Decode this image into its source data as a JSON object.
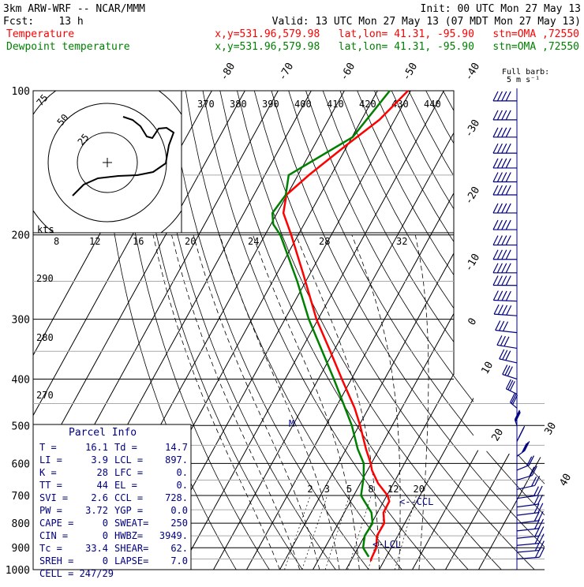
{
  "header": {
    "model": "3km ARW-WRF -- NCAR/MMM",
    "init": "Init: 00 UTC Mon 27 May 13",
    "fcst": "Fcst:    13 h",
    "valid": "Valid: 13 UTC Mon 27 May 13 (07 MDT Mon 27 May 13)",
    "series": [
      {
        "label": "Temperature",
        "info": "x,y=531.96,579.98   lat,lon= 41.31, -95.90   stn=OMA ,72550",
        "color": "#ff0000"
      },
      {
        "label": "Dewpoint temperature",
        "info": "x,y=531.96,579.98   lat,lon= 41.31, -95.90   stn=OMA ,72550",
        "color": "#008000"
      }
    ]
  },
  "colors": {
    "temperature": "#ff0000",
    "dewpoint": "#008000",
    "barbs": "#000080",
    "parcel_title": "#000080",
    "grid": "#000000"
  },
  "chart_data": {
    "type": "line",
    "pressure_levels": [
      "100",
      "200",
      "300",
      "400",
      "500",
      "600",
      "700",
      "800",
      "900",
      "1000"
    ],
    "isotherm_labels": [
      "-80",
      "-70",
      "-60",
      "-50",
      "-40",
      "-30",
      "-20",
      "-10",
      "0",
      "10",
      "20",
      "30",
      "40"
    ],
    "theta_labels": [
      "370",
      "380",
      "390",
      "400",
      "410",
      "420",
      "430",
      "440"
    ],
    "mixing_ratio_labels": [
      "2",
      "3",
      "5",
      "8",
      "12",
      "20"
    ],
    "speed_labels": [
      "8",
      "12",
      "16",
      "20",
      "24",
      "28",
      "32"
    ],
    "theta_side_labels": [
      "290",
      "280",
      "270"
    ],
    "hodograph": {
      "units_label": "kts",
      "ring_labels": [
        "75",
        "50",
        "25"
      ]
    },
    "legend_barb": "Full barb:\n5 m s⁻¹",
    "annotations": {
      "m": "M",
      "ccl": "<--CCL",
      "lcl": "<-LCL"
    },
    "temperature_profile": [
      {
        "p": 100,
        "t": -50.8
      },
      {
        "p": 115,
        "t": -54.6
      },
      {
        "p": 130,
        "t": -60.4
      },
      {
        "p": 150,
        "t": -66.7
      },
      {
        "p": 165,
        "t": -70.2
      },
      {
        "p": 180,
        "t": -68.1
      },
      {
        "p": 200,
        "t": -62.1
      },
      {
        "p": 240,
        "t": -52.3
      },
      {
        "p": 300,
        "t": -40.5
      },
      {
        "p": 350,
        "t": -31.0
      },
      {
        "p": 400,
        "t": -22.9
      },
      {
        "p": 460,
        "t": -14.2
      },
      {
        "p": 500,
        "t": -9.7
      },
      {
        "p": 560,
        "t": -4.0
      },
      {
        "p": 600,
        "t": -0.2
      },
      {
        "p": 620,
        "t": 1.3
      },
      {
        "p": 660,
        "t": 5.3
      },
      {
        "p": 700,
        "t": 10.2
      },
      {
        "p": 720,
        "t": 11.7
      },
      {
        "p": 760,
        "t": 11.8
      },
      {
        "p": 800,
        "t": 13.8
      },
      {
        "p": 850,
        "t": 13.7
      },
      {
        "p": 900,
        "t": 15.5
      },
      {
        "p": 950,
        "t": 15.8
      },
      {
        "p": 960,
        "t": 16.1
      }
    ],
    "dewpoint_profile": [
      {
        "p": 100,
        "t": -56.3
      },
      {
        "p": 125,
        "t": -59.8
      },
      {
        "p": 150,
        "t": -72.8
      },
      {
        "p": 165,
        "t": -70.4
      },
      {
        "p": 180,
        "t": -71.4
      },
      {
        "p": 190,
        "t": -69.3
      },
      {
        "p": 200,
        "t": -65.4
      },
      {
        "p": 250,
        "t": -52.6
      },
      {
        "p": 300,
        "t": -42.8
      },
      {
        "p": 400,
        "t": -25.3
      },
      {
        "p": 500,
        "t": -12.2
      },
      {
        "p": 560,
        "t": -6.5
      },
      {
        "p": 600,
        "t": -2.3
      },
      {
        "p": 640,
        "t": -0.1
      },
      {
        "p": 700,
        "t": 2.2
      },
      {
        "p": 720,
        "t": 4.2
      },
      {
        "p": 760,
        "t": 8.2
      },
      {
        "p": 800,
        "t": 10.3
      },
      {
        "p": 850,
        "t": 10.0
      },
      {
        "p": 900,
        "t": 11.5
      },
      {
        "p": 940,
        "t": 14.7
      }
    ],
    "wind_barbs_pressures": [
      105,
      115,
      125,
      135,
      145,
      155,
      165,
      180,
      195,
      210,
      225,
      240,
      255,
      275,
      295,
      320,
      345,
      370,
      400,
      430,
      460,
      500,
      540,
      580,
      620,
      650,
      680,
      710,
      740,
      770,
      800,
      830,
      860,
      890,
      920,
      950
    ]
  },
  "parcel_info": {
    "title": "Parcel Info",
    "rows": [
      [
        "T  =",
        "16.1",
        "Td =",
        "14.7"
      ],
      [
        "LI =",
        "3.9",
        "LCL =",
        "897."
      ],
      [
        "K  =",
        "28",
        "LFC =",
        "0."
      ],
      [
        "TT =",
        "44",
        "EL  =",
        "0."
      ],
      [
        "SVI =",
        "2.6",
        "CCL =",
        "728."
      ],
      [
        "PW =",
        "3.72",
        "YGP =",
        "0.0"
      ],
      [
        "CAPE =",
        "0",
        "SWEAT=",
        "250"
      ],
      [
        "CIN =",
        "0",
        "HWBZ=",
        "3949."
      ],
      [
        "Tc =",
        "33.4",
        "SHEAR=",
        "62."
      ],
      [
        "SREH =",
        "0",
        "LAPSE=",
        "7.0"
      ]
    ],
    "cell": "CELL = 247/29"
  }
}
